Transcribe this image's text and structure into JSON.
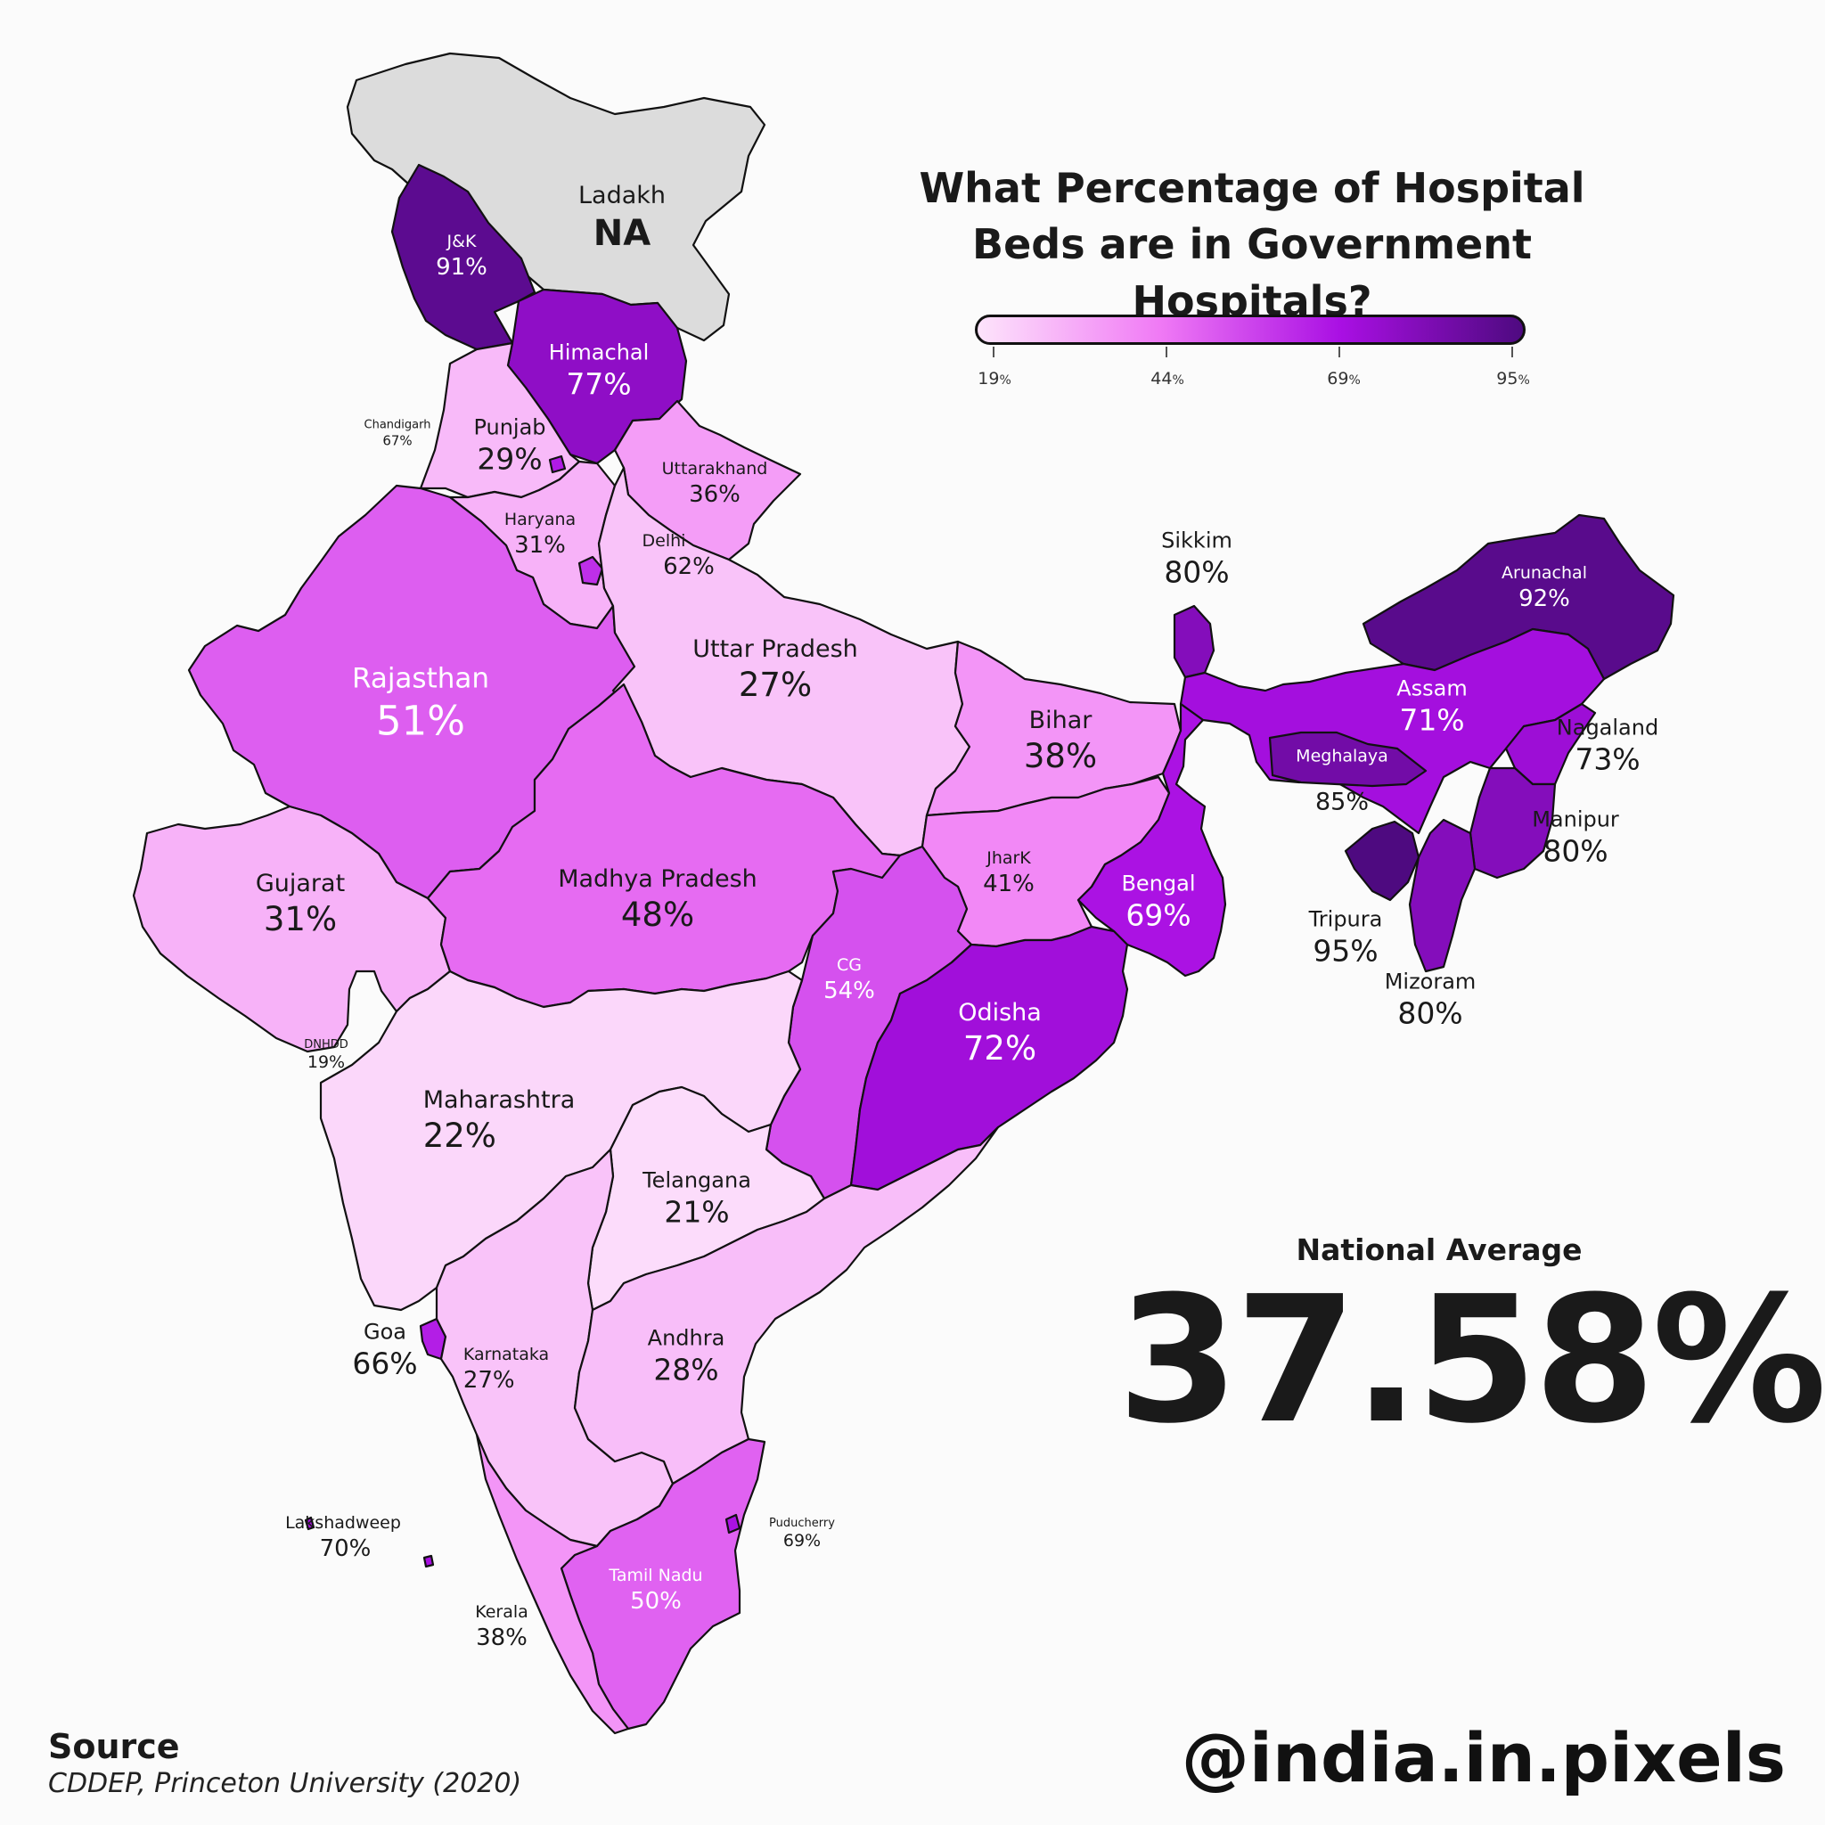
{
  "title": "What Percentage of Hospital Beds are in Government Hospitals?",
  "legend": {
    "ticks": [
      "19",
      "44",
      "69",
      "95"
    ],
    "unit": "%",
    "colors": [
      "#fde4fb",
      "#f07af5",
      "#a90fe3",
      "#4e0a80"
    ]
  },
  "colors": {
    "na": "#dcdcdc"
  },
  "regions": [
    {
      "id": "ladakh",
      "name": "Ladakh",
      "value": "NA",
      "pct": null
    },
    {
      "id": "jk",
      "name": "J&K",
      "value": "91%",
      "pct": 91
    },
    {
      "id": "himachal",
      "name": "Himachal",
      "value": "77%",
      "pct": 77
    },
    {
      "id": "punjab",
      "name": "Punjab",
      "value": "29%",
      "pct": 29
    },
    {
      "id": "chandigarh",
      "name": "Chandigarh",
      "value": "67%",
      "pct": 67
    },
    {
      "id": "uttarakhand",
      "name": "Uttarakhand",
      "value": "36%",
      "pct": 36
    },
    {
      "id": "haryana",
      "name": "Haryana",
      "value": "31%",
      "pct": 31
    },
    {
      "id": "delhi",
      "name": "Delhi",
      "value": "62%",
      "pct": 62
    },
    {
      "id": "rajasthan",
      "name": "Rajasthan",
      "value": "51%",
      "pct": 51
    },
    {
      "id": "up",
      "name": "Uttar Pradesh",
      "value": "27%",
      "pct": 27
    },
    {
      "id": "bihar",
      "name": "Bihar",
      "value": "38%",
      "pct": 38
    },
    {
      "id": "sikkim",
      "name": "Sikkim",
      "value": "80%",
      "pct": 80
    },
    {
      "id": "arunachal",
      "name": "Arunachal",
      "value": "92%",
      "pct": 92
    },
    {
      "id": "assam",
      "name": "Assam",
      "value": "71%",
      "pct": 71
    },
    {
      "id": "nagaland",
      "name": "Nagaland",
      "value": "73%",
      "pct": 73
    },
    {
      "id": "meghalaya",
      "name": "Meghalaya",
      "value": "85%",
      "pct": 85
    },
    {
      "id": "manipur",
      "name": "Manipur",
      "value": "80%",
      "pct": 80
    },
    {
      "id": "tripura",
      "name": "Tripura",
      "value": "95%",
      "pct": 95
    },
    {
      "id": "mizoram",
      "name": "Mizoram",
      "value": "80%",
      "pct": 80
    },
    {
      "id": "gujarat",
      "name": "Gujarat",
      "value": "31%",
      "pct": 31
    },
    {
      "id": "mp",
      "name": "Madhya Pradesh",
      "value": "48%",
      "pct": 48
    },
    {
      "id": "jharkhand",
      "name": "JharK",
      "value": "41%",
      "pct": 41
    },
    {
      "id": "bengal",
      "name": "Bengal",
      "value": "69%",
      "pct": 69
    },
    {
      "id": "cg",
      "name": "CG",
      "value": "54%",
      "pct": 54
    },
    {
      "id": "odisha",
      "name": "Odisha",
      "value": "72%",
      "pct": 72
    },
    {
      "id": "dnhdd",
      "name": "DNHDD",
      "value": "19%",
      "pct": 19
    },
    {
      "id": "maharashtra",
      "name": "Maharashtra",
      "value": "22%",
      "pct": 22
    },
    {
      "id": "telangana",
      "name": "Telangana",
      "value": "21%",
      "pct": 21
    },
    {
      "id": "goa",
      "name": "Goa",
      "value": "66%",
      "pct": 66
    },
    {
      "id": "karnataka",
      "name": "Karnataka",
      "value": "27%",
      "pct": 27
    },
    {
      "id": "andhra",
      "name": "Andhra",
      "value": "28%",
      "pct": 28
    },
    {
      "id": "lakshadweep",
      "name": "Lakshadweep",
      "value": "70%",
      "pct": 70
    },
    {
      "id": "puducherry",
      "name": "Puducherry",
      "value": "69%",
      "pct": 69
    },
    {
      "id": "tamilnadu",
      "name": "Tamil Nadu",
      "value": "50%",
      "pct": 50
    },
    {
      "id": "kerala",
      "name": "Kerala",
      "value": "38%",
      "pct": 38
    }
  ],
  "national_average": {
    "label": "National Average",
    "value": "37.58%"
  },
  "source": {
    "heading": "Source",
    "text": "CDDEP, Princeton University (2020)"
  },
  "handle": "@india.in.pixels"
}
